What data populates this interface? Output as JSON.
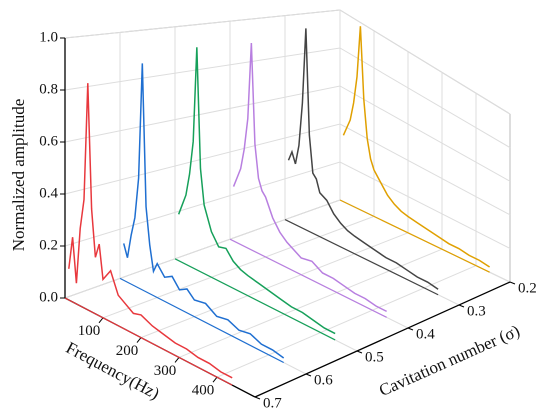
{
  "chart_data": {
    "type": "waterfall",
    "zlabel": "Normalized amplitude",
    "xlabel": "Frequency(Hz)",
    "ylabel": "Cavitation number (σ)",
    "x": [
      10,
      20,
      30,
      40,
      50,
      60,
      70,
      80,
      90,
      100,
      120,
      140,
      160,
      180,
      200,
      230,
      260,
      290,
      320,
      350,
      380,
      410,
      440
    ],
    "xlim": [
      0,
      500
    ],
    "xticks": [
      100,
      200,
      300,
      400
    ],
    "ylim": [
      0.7,
      0.2
    ],
    "yticks": [
      0.7,
      0.6,
      0.5,
      0.4,
      0.3,
      0.2
    ],
    "zlim": [
      0,
      1
    ],
    "zticks": [
      {
        "value": 0,
        "label": "0.0"
      },
      0.2,
      0.4,
      0.6,
      0.8,
      {
        "value": 1,
        "label": "1.0"
      }
    ],
    "grid": true,
    "series": [
      {
        "y": 0.7,
        "color": "#e8383d",
        "values": [
          0.12,
          0.25,
          0.08,
          0.3,
          0.42,
          0.88,
          0.4,
          0.22,
          0.28,
          0.15,
          0.2,
          0.12,
          0.1,
          0.08,
          0.09,
          0.07,
          0.06,
          0.05,
          0.05,
          0.04,
          0.04,
          0.03,
          0.03
        ]
      },
      {
        "y": 0.6,
        "color": "#1f6fd1",
        "values": [
          0.15,
          0.1,
          0.2,
          0.28,
          0.45,
          0.93,
          0.35,
          0.2,
          0.1,
          0.14,
          0.1,
          0.12,
          0.08,
          0.1,
          0.07,
          0.08,
          0.05,
          0.06,
          0.04,
          0.05,
          0.03,
          0.03,
          0.02
        ]
      },
      {
        "y": 0.5,
        "color": "#16a05a",
        "values": [
          0.2,
          0.25,
          0.3,
          0.4,
          0.55,
          0.97,
          0.45,
          0.3,
          0.25,
          0.2,
          0.15,
          0.16,
          0.12,
          0.1,
          0.09,
          0.08,
          0.07,
          0.06,
          0.05,
          0.05,
          0.04,
          0.03,
          0.03
        ]
      },
      {
        "y": 0.4,
        "color": "#b87fe0",
        "values": [
          0.25,
          0.3,
          0.35,
          0.45,
          0.6,
          0.96,
          0.5,
          0.35,
          0.3,
          0.28,
          0.2,
          0.15,
          0.12,
          0.1,
          0.08,
          0.09,
          0.06,
          0.06,
          0.05,
          0.04,
          0.04,
          0.03,
          0.03
        ]
      },
      {
        "y": 0.3,
        "color": "#444444",
        "values": [
          0.3,
          0.35,
          0.3,
          0.4,
          0.62,
          1.0,
          0.48,
          0.3,
          0.28,
          0.22,
          0.2,
          0.15,
          0.12,
          0.1,
          0.09,
          0.08,
          0.07,
          0.06,
          0.06,
          0.05,
          0.04,
          0.04,
          0.03
        ]
      },
      {
        "y": 0.2,
        "color": "#e0a000",
        "values": [
          0.35,
          0.4,
          0.45,
          0.55,
          0.7,
          0.98,
          0.6,
          0.4,
          0.3,
          0.25,
          0.2,
          0.15,
          0.12,
          0.1,
          0.09,
          0.08,
          0.07,
          0.06,
          0.05,
          0.05,
          0.04,
          0.04,
          0.03
        ]
      }
    ]
  }
}
